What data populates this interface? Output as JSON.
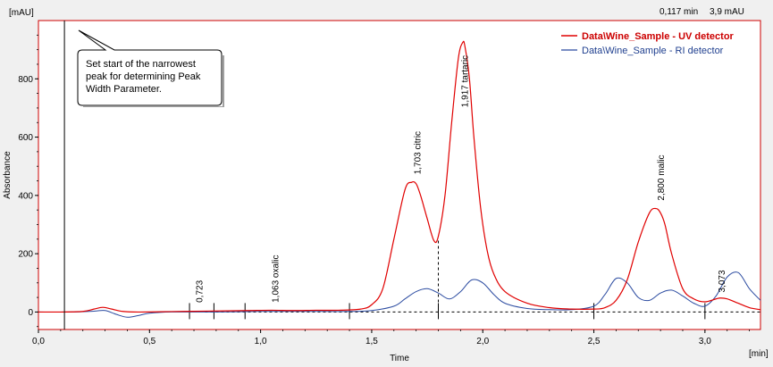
{
  "cursor_readout": {
    "time": "0,117 min",
    "value": "3,9 mAU"
  },
  "tooltip": {
    "lines": [
      "Set start of the narrowest",
      "peak for determining Peak",
      "Width Parameter."
    ]
  },
  "colors": {
    "uv_series": "#e00000",
    "ri_series": "#2a4aa0",
    "plot_background": "#ffffff",
    "plot_border": "#cc0000",
    "page_background": "#f0f0f0"
  },
  "chart_data": {
    "type": "line",
    "xlabel": "Time",
    "ylabel": "Absorbance",
    "x_unit": "[min]",
    "y_unit": "[mAU]",
    "xlim": [
      0.0,
      3.25
    ],
    "ylim": [
      -60,
      1000
    ],
    "x_ticks": [
      {
        "value": 0.0,
        "label": "0,0"
      },
      {
        "value": 0.5,
        "label": "0,5"
      },
      {
        "value": 1.0,
        "label": "1,0"
      },
      {
        "value": 1.5,
        "label": "1,5"
      },
      {
        "value": 2.0,
        "label": "2,0"
      },
      {
        "value": 2.5,
        "label": "2,5"
      },
      {
        "value": 3.0,
        "label": "3,0"
      }
    ],
    "y_ticks": [
      {
        "value": 0,
        "label": "0"
      },
      {
        "value": 200,
        "label": "200"
      },
      {
        "value": 400,
        "label": "400"
      },
      {
        "value": 600,
        "label": "600"
      },
      {
        "value": 800,
        "label": "800"
      }
    ],
    "grid": false,
    "legend_position": "top-right",
    "cursor_time": 0.117,
    "series": [
      {
        "name": "Data\\Wine_Sample - UV detector",
        "color": "#e00000",
        "x": [
          0.0,
          0.1,
          0.2,
          0.25,
          0.29,
          0.33,
          0.38,
          0.45,
          0.55,
          0.65,
          0.75,
          0.85,
          0.95,
          1.05,
          1.15,
          1.25,
          1.35,
          1.45,
          1.5,
          1.55,
          1.6,
          1.65,
          1.68,
          1.7,
          1.72,
          1.75,
          1.78,
          1.8,
          1.83,
          1.86,
          1.89,
          1.91,
          1.92,
          1.94,
          1.96,
          1.99,
          2.02,
          2.05,
          2.1,
          2.2,
          2.3,
          2.4,
          2.5,
          2.55,
          2.6,
          2.65,
          2.7,
          2.75,
          2.78,
          2.8,
          2.82,
          2.85,
          2.9,
          2.95,
          3.0,
          3.05,
          3.07,
          3.1,
          3.15,
          3.2,
          3.25
        ],
        "y": [
          0,
          0,
          2,
          10,
          16,
          10,
          2,
          0,
          1,
          2,
          3,
          4,
          5,
          6,
          5,
          6,
          6,
          10,
          25,
          80,
          250,
          420,
          445,
          440,
          400,
          320,
          245,
          260,
          400,
          650,
          870,
          925,
          910,
          800,
          600,
          360,
          210,
          130,
          70,
          30,
          15,
          10,
          10,
          15,
          40,
          110,
          240,
          340,
          355,
          340,
          300,
          200,
          80,
          45,
          35,
          45,
          48,
          45,
          30,
          15,
          8
        ]
      },
      {
        "name": "Data\\Wine_Sample - RI detector",
        "color": "#2a4aa0",
        "x": [
          0.0,
          0.15,
          0.25,
          0.3,
          0.35,
          0.4,
          0.45,
          0.5,
          0.6,
          0.8,
          1.0,
          1.2,
          1.4,
          1.5,
          1.6,
          1.65,
          1.7,
          1.75,
          1.8,
          1.85,
          1.9,
          1.95,
          2.0,
          2.05,
          2.1,
          2.2,
          2.3,
          2.4,
          2.5,
          2.55,
          2.6,
          2.65,
          2.7,
          2.75,
          2.8,
          2.85,
          2.9,
          2.95,
          3.0,
          3.05,
          3.1,
          3.15,
          3.2,
          3.25
        ],
        "y": [
          0,
          0,
          3,
          5,
          -8,
          -18,
          -12,
          -4,
          0,
          0,
          2,
          2,
          2,
          5,
          20,
          45,
          70,
          80,
          65,
          45,
          70,
          110,
          100,
          60,
          30,
          12,
          8,
          8,
          20,
          60,
          115,
          100,
          50,
          40,
          65,
          75,
          55,
          30,
          20,
          55,
          120,
          135,
          80,
          40
        ]
      }
    ],
    "annotations": [
      {
        "label": "0,723",
        "x": 0.723,
        "y": 20
      },
      {
        "label": "1,063 oxalic",
        "x": 1.063,
        "y": 20
      },
      {
        "label": "1,703 citric",
        "x": 1.703,
        "y": 460
      },
      {
        "label": "1,917 tartaric",
        "x": 1.917,
        "y": 690
      },
      {
        "label": "2,800 malic",
        "x": 2.8,
        "y": 370
      },
      {
        "label": "3,073",
        "x": 3.073,
        "y": 55
      }
    ],
    "integration_markers": {
      "baseline_y": 0,
      "ticks_x": [
        0.68,
        0.79,
        0.93,
        1.4,
        1.8,
        2.5,
        3.0
      ],
      "drop_lines": [
        {
          "x": 1.8,
          "y": 245
        }
      ]
    }
  }
}
